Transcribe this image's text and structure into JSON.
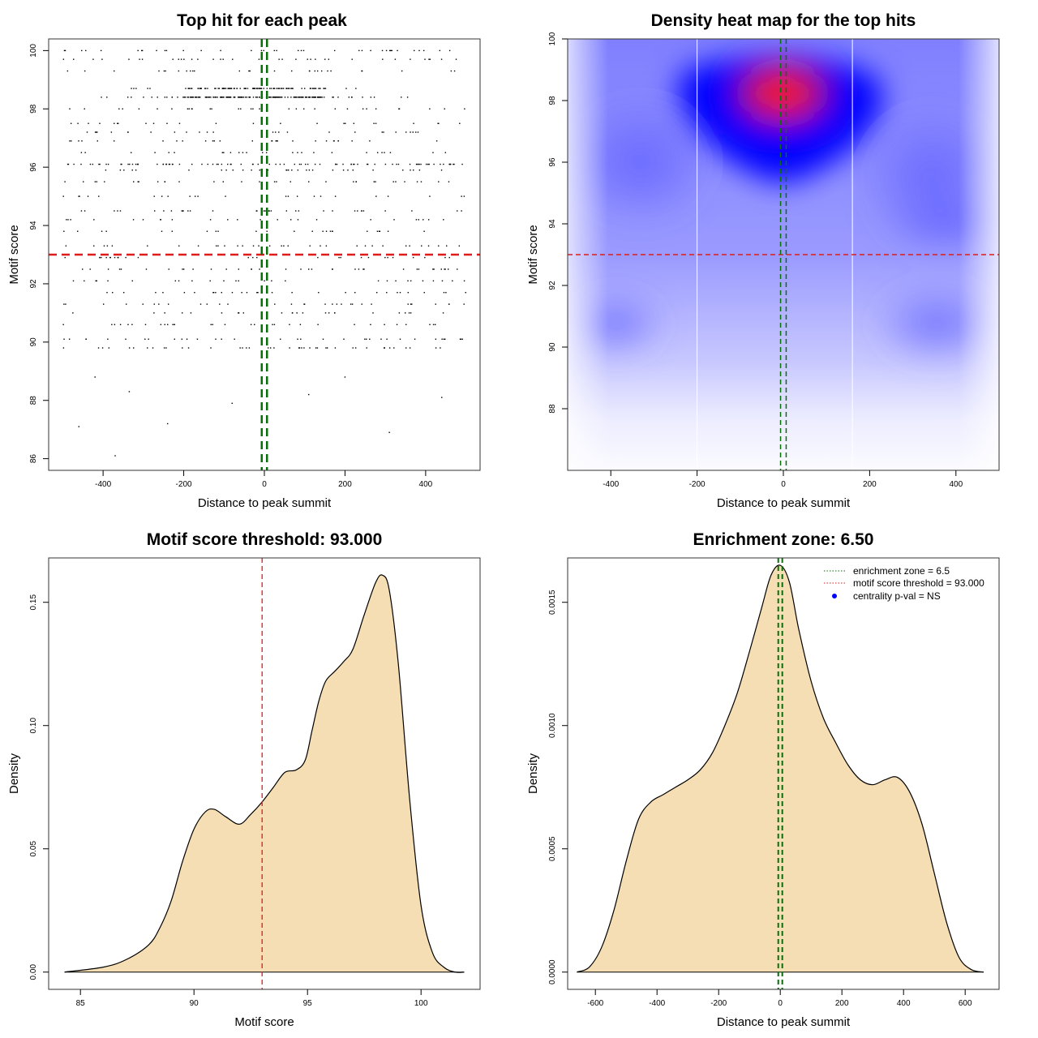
{
  "chart_data": [
    {
      "id": "p1",
      "type": "scatter",
      "title": "Top hit for each peak",
      "xlabel": "Distance to peak summit",
      "ylabel": "Motif score",
      "xlim": [
        -535,
        535
      ],
      "ylim": [
        85.6,
        100.4
      ],
      "xticks": [
        -400,
        -200,
        0,
        200,
        400
      ],
      "yticks": [
        86,
        88,
        90,
        92,
        94,
        96,
        98,
        100
      ],
      "n_points": 1100,
      "point_score_levels": [
        89.8,
        90.1,
        90.6,
        91.0,
        91.3,
        91.7,
        92.1,
        92.5,
        92.9,
        93.3,
        93.8,
        94.2,
        94.5,
        95.0,
        95.5,
        95.9,
        96.1,
        96.5,
        96.9,
        97.2,
        97.5,
        98.0,
        98.4,
        98.7,
        99.3,
        99.7,
        100.0
      ],
      "point_distance_range": [
        -500,
        500
      ],
      "outliers": [
        {
          "x": -370,
          "y": 86.1
        },
        {
          "x": -460,
          "y": 87.1
        },
        {
          "x": -240,
          "y": 87.2
        },
        {
          "x": -80,
          "y": 87.9
        },
        {
          "x": 310,
          "y": 86.9
        },
        {
          "x": 440,
          "y": 88.1
        },
        {
          "x": -335,
          "y": 88.3
        },
        {
          "x": -420,
          "y": 88.8
        },
        {
          "x": 200,
          "y": 88.8
        },
        {
          "x": 110,
          "y": 88.2
        }
      ],
      "hlines": [
        {
          "y": 93.0,
          "color": "#dd1c1c",
          "style": "dashed"
        }
      ],
      "vlines": [
        {
          "x": -6.5,
          "color": "#0a6e0a",
          "style": "dashed"
        },
        {
          "x": 6.5,
          "color": "#0a6e0a",
          "style": "dashed"
        }
      ]
    },
    {
      "id": "p2",
      "type": "heatmap",
      "title": "Density heat map for the top hits",
      "xlabel": "Distance to peak summit",
      "ylabel": "Motif score",
      "xlim": [
        -500,
        500
      ],
      "ylim": [
        86.0,
        100.0
      ],
      "xticks": [
        -400,
        -200,
        0,
        200,
        400
      ],
      "yticks": [
        88,
        90,
        92,
        94,
        96,
        98,
        100
      ],
      "color_scale": [
        "#ffffff",
        "#7070ff",
        "#0000ff",
        "#ff0000"
      ],
      "density_hotspot": {
        "x": 0,
        "y": 98.3
      },
      "grid_vlines": [
        -200,
        160
      ],
      "hlines": [
        {
          "y": 93.0,
          "color": "#dd1c1c",
          "style": "dashed"
        }
      ],
      "vlines": [
        {
          "x": -6.5,
          "color": "#0a6e0a",
          "style": "dashed"
        },
        {
          "x": 6.5,
          "color": "#0a6e0a",
          "style": "dashed"
        }
      ]
    },
    {
      "id": "p3",
      "type": "area",
      "title": "Motif score threshold: 93.000",
      "xlabel": "Motif score",
      "ylabel": "Density",
      "xlim": [
        83.6,
        102.6
      ],
      "ylim": [
        -0.007,
        0.168
      ],
      "xticks": [
        85,
        90,
        95,
        100
      ],
      "yticks": [
        0.0,
        0.05,
        0.1,
        0.15
      ],
      "ytick_labels": [
        "0.00",
        "0.05",
        "0.10",
        "0.15"
      ],
      "fill": "#f5deb3",
      "x": [
        84.3,
        86.0,
        87.0,
        88.0,
        88.5,
        89.0,
        89.5,
        90.0,
        90.5,
        90.9,
        91.4,
        92.0,
        92.5,
        93.0,
        93.5,
        94.0,
        94.5,
        94.9,
        95.2,
        95.5,
        95.8,
        96.2,
        96.6,
        97.0,
        97.5,
        98.0,
        98.3,
        98.6,
        99.0,
        99.5,
        100.0,
        100.5,
        101.0,
        101.5,
        101.9
      ],
      "values": [
        0.0,
        0.002,
        0.005,
        0.011,
        0.018,
        0.029,
        0.045,
        0.058,
        0.065,
        0.066,
        0.063,
        0.06,
        0.064,
        0.069,
        0.075,
        0.081,
        0.082,
        0.086,
        0.098,
        0.11,
        0.118,
        0.122,
        0.126,
        0.131,
        0.145,
        0.158,
        0.161,
        0.155,
        0.125,
        0.07,
        0.027,
        0.008,
        0.002,
        0.0,
        0.0
      ],
      "vlines": [
        {
          "x": 93.0,
          "color": "#dd1c1c",
          "style": "dashed"
        }
      ]
    },
    {
      "id": "p4",
      "type": "area",
      "title": "Enrichment zone: 6.50",
      "xlabel": "Distance to peak summit",
      "ylabel": "Density",
      "xlim": [
        -690,
        710
      ],
      "ylim": [
        -7e-05,
        0.00168
      ],
      "xticks": [
        -600,
        -400,
        -200,
        0,
        200,
        400,
        600
      ],
      "yticks": [
        0.0,
        0.0005,
        0.001,
        0.0015
      ],
      "ytick_labels": [
        "0.0000",
        "0.0005",
        "0.0010",
        "0.0015"
      ],
      "fill": "#f5deb3",
      "x": [
        -660,
        -620,
        -580,
        -540,
        -500,
        -460,
        -420,
        -380,
        -340,
        -300,
        -260,
        -220,
        -180,
        -140,
        -100,
        -60,
        -30,
        0,
        30,
        60,
        100,
        140,
        180,
        220,
        260,
        300,
        340,
        380,
        420,
        460,
        500,
        540,
        580,
        620,
        660
      ],
      "values": [
        0.0,
        2e-05,
        0.0001,
        0.00025,
        0.00045,
        0.00062,
        0.00069,
        0.00072,
        0.00075,
        0.00078,
        0.00082,
        0.00089,
        0.001,
        0.00113,
        0.0013,
        0.00148,
        0.00161,
        0.00165,
        0.00158,
        0.00139,
        0.00118,
        0.00103,
        0.00093,
        0.00084,
        0.00078,
        0.00076,
        0.00078,
        0.00079,
        0.00073,
        0.0006,
        0.0004,
        0.0002,
        6e-05,
        1e-05,
        0.0
      ],
      "vlines": [
        {
          "x": -6.5,
          "color": "#0a6e0a",
          "style": "dashed"
        },
        {
          "x": 6.5,
          "color": "#0a6e0a",
          "style": "dashed"
        }
      ],
      "legend_position": "top-right",
      "legend": [
        {
          "label": "enrichment zone = 6.5",
          "color": "#0a6e0a",
          "symbol": "dotted-line"
        },
        {
          "label": "motif score threshold = 93.000",
          "color": "#dd1c1c",
          "symbol": "dotted-line"
        },
        {
          "label": "centrality p-val = NS",
          "color": "#0000ff",
          "symbol": "dot"
        }
      ]
    }
  ]
}
